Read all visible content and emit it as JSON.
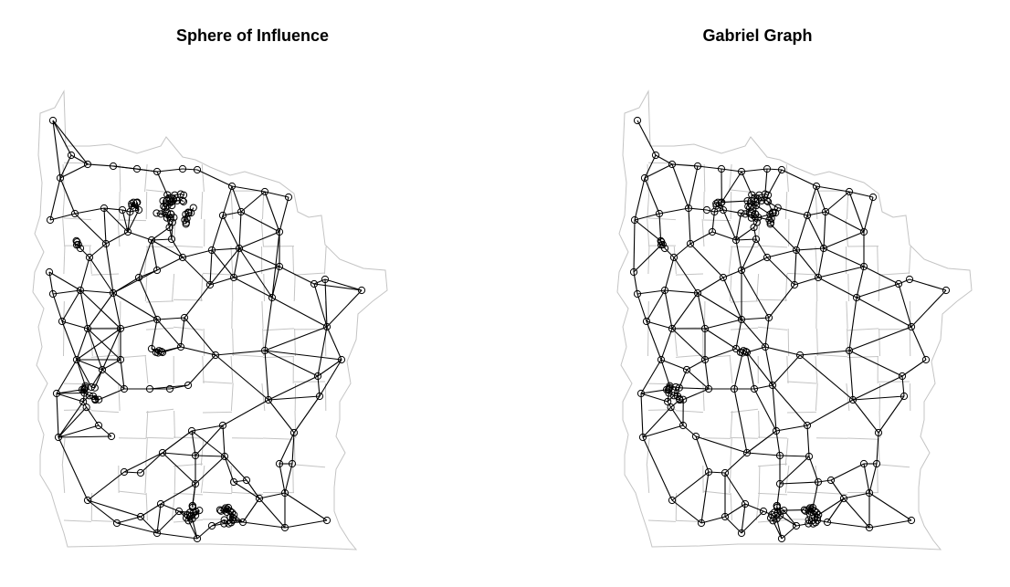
{
  "figure": {
    "panels": [
      {
        "title": "Sphere of Influence"
      },
      {
        "title": "Gabriel Graph"
      }
    ]
  }
}
